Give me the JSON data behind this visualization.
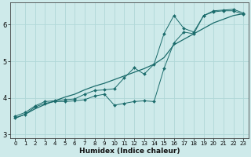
{
  "xlabel": "Humidex (Indice chaleur)",
  "bg_color": "#ceeaea",
  "grid_color": "#b0d8d8",
  "line_color": "#1a6b6b",
  "xlim": [
    -0.5,
    23.5
  ],
  "ylim": [
    2.9,
    6.6
  ],
  "xticks": [
    0,
    1,
    2,
    3,
    4,
    5,
    6,
    7,
    8,
    9,
    10,
    11,
    12,
    13,
    14,
    15,
    16,
    17,
    18,
    19,
    20,
    21,
    22,
    23
  ],
  "yticks": [
    3,
    4,
    5,
    6
  ],
  "series1_x": [
    0,
    1,
    2,
    3,
    4,
    5,
    6,
    7,
    8,
    9,
    10,
    11,
    12,
    13,
    14,
    15,
    16,
    17,
    18,
    19,
    20,
    21,
    22,
    23
  ],
  "series1_y": [
    3.45,
    3.55,
    3.75,
    3.85,
    3.9,
    3.9,
    3.92,
    3.95,
    4.05,
    4.1,
    3.8,
    3.85,
    3.9,
    3.92,
    3.9,
    4.8,
    5.5,
    5.8,
    5.75,
    6.25,
    6.35,
    6.38,
    6.38,
    6.28
  ],
  "series2_x": [
    0,
    1,
    2,
    3,
    4,
    5,
    6,
    7,
    8,
    9,
    10,
    11,
    12,
    13,
    14,
    15,
    16,
    17,
    18,
    19,
    20,
    21,
    22,
    23
  ],
  "series2_y": [
    3.5,
    3.6,
    3.78,
    3.9,
    3.92,
    3.95,
    3.97,
    4.1,
    4.2,
    4.22,
    4.25,
    4.55,
    4.82,
    4.65,
    4.92,
    5.75,
    6.25,
    5.9,
    5.8,
    6.25,
    6.38,
    6.4,
    6.42,
    6.32
  ],
  "series3_x": [
    0,
    1,
    2,
    3,
    4,
    5,
    6,
    7,
    8,
    9,
    10,
    11,
    12,
    13,
    14,
    15,
    16,
    17,
    18,
    19,
    20,
    21,
    22,
    23
  ],
  "series3_y": [
    3.45,
    3.55,
    3.7,
    3.82,
    3.92,
    4.02,
    4.1,
    4.22,
    4.32,
    4.4,
    4.5,
    4.6,
    4.7,
    4.8,
    4.92,
    5.1,
    5.45,
    5.6,
    5.75,
    5.9,
    6.05,
    6.15,
    6.25,
    6.3
  ]
}
